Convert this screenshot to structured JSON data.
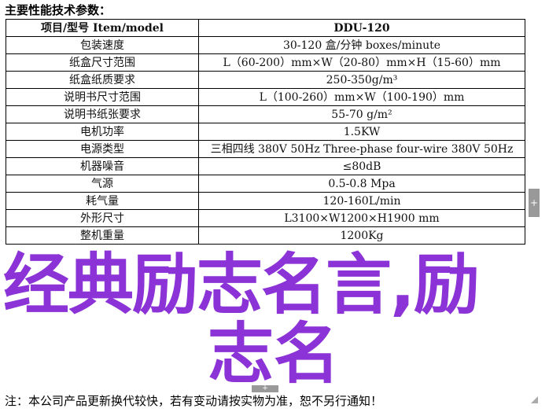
{
  "title": "主要性能技术参数：",
  "table": {
    "header": [
      "项目/型号 Item/model",
      "DDU-120"
    ],
    "rows": [
      [
        "包装速度",
        "30-120 盒/分钟 boxes/minute"
      ],
      [
        "纸盒尺寸范围",
        "L（60-200）mm×W（20-80）mm×H（15-60）mm"
      ],
      [
        "纸盒纸质要求",
        "250-350g/m³"
      ],
      [
        "说明书尺寸范围",
        "L（100-260）mm×W（100-190）mm"
      ],
      [
        "说明书纸张要求",
        "55-70 g/m²"
      ],
      [
        "电机功率",
        "1.5KW"
      ],
      [
        "电源类型",
        "三相四线 380V 50Hz Three-phase four-wire 380V 50Hz"
      ],
      [
        "机器噪音",
        "≤80dB"
      ],
      [
        "气源",
        "0.5-0.8 Mpa"
      ],
      [
        "耗气量",
        "120-160L/min"
      ],
      [
        "外形尺寸",
        "L3100×W1200×H1900 mm"
      ],
      [
        "整机重量",
        "1200Kg"
      ]
    ]
  },
  "note": "注：本公司产品更新换代较快，若有变动请按实物为准，恕不另行通知！",
  "overlay": {
    "line1": "经典励志名言,励",
    "line2": "志名",
    "color": "#8b33d6"
  },
  "controls": {
    "plus": "+"
  }
}
